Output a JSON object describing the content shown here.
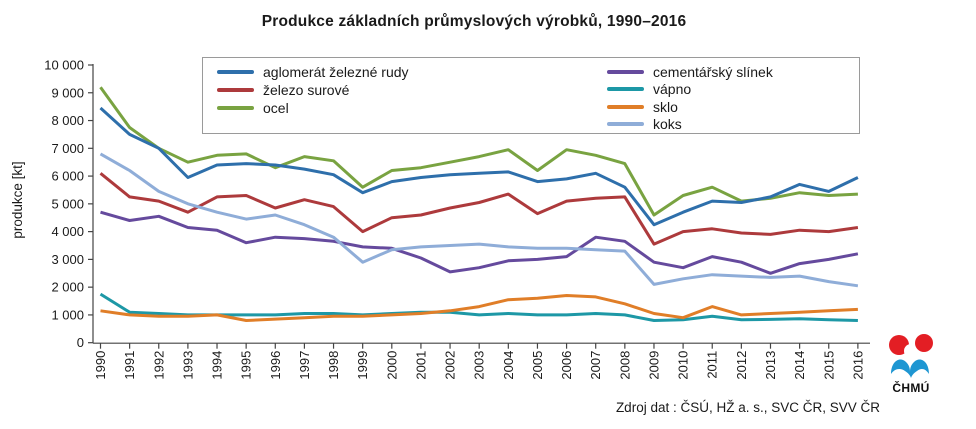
{
  "title": "Produkce základních průmyslových výrobků, 1990–2016",
  "source": "Zdroj dat : ČSÚ, HŽ a. s., SVC ČR, SVV ČR",
  "logo": {
    "caption": "ČHMÚ",
    "red": "#e31e24",
    "blue": "#1e96d2"
  },
  "chart_data": {
    "type": "line",
    "title": "Produkce základních průmyslových výrobků, 1990–2016",
    "xlabel": "",
    "ylabel": "produkce  [kt]",
    "ylim": [
      0,
      10000
    ],
    "ytick_step": 1000,
    "grid": false,
    "legend_position": "top-inside-two-columns",
    "x": [
      1990,
      1991,
      1992,
      1993,
      1994,
      1995,
      1996,
      1997,
      1998,
      1999,
      2000,
      2001,
      2002,
      2003,
      2004,
      2005,
      2006,
      2007,
      2008,
      2009,
      2010,
      2011,
      2012,
      2013,
      2014,
      2015,
      2016
    ],
    "series": [
      {
        "name": "aglomerát železné rudy",
        "slug": "aglomerat-zelezne-rudy",
        "color": "#2e6fab",
        "values": [
          8450,
          7500,
          7000,
          5950,
          6400,
          6450,
          6400,
          6250,
          6050,
          5400,
          5800,
          5950,
          6050,
          6100,
          6150,
          5800,
          5900,
          6100,
          5600,
          4250,
          4700,
          5100,
          5050,
          5250,
          5700,
          5450,
          5950
        ]
      },
      {
        "name": "železo surové",
        "slug": "zelezo-surove",
        "color": "#ad3a3c",
        "values": [
          6100,
          5250,
          5100,
          4700,
          5250,
          5300,
          4850,
          5150,
          4900,
          4000,
          4500,
          4600,
          4850,
          5050,
          5350,
          4650,
          5100,
          5200,
          5250,
          3550,
          4000,
          4100,
          3950,
          3900,
          4050,
          4000,
          4150
        ]
      },
      {
        "name": "ocel",
        "slug": "ocel",
        "color": "#79a341",
        "values": [
          9200,
          7750,
          7000,
          6500,
          6750,
          6800,
          6300,
          6700,
          6550,
          5600,
          6200,
          6300,
          6500,
          6700,
          6950,
          6200,
          6950,
          6750,
          6450,
          4600,
          5300,
          5600,
          5100,
          5200,
          5400,
          5300,
          5350
        ]
      },
      {
        "name": "cementářský slínek",
        "slug": "cementarsky-slinek",
        "color": "#654a9d",
        "values": [
          4700,
          4400,
          4550,
          4150,
          4050,
          3600,
          3800,
          3750,
          3650,
          3450,
          3400,
          3050,
          2550,
          2700,
          2950,
          3000,
          3100,
          3800,
          3650,
          2900,
          2700,
          3100,
          2900,
          2500,
          2850,
          3000,
          3200
        ]
      },
      {
        "name": "vápno",
        "slug": "vapno",
        "color": "#1d98a6",
        "values": [
          1750,
          1100,
          1050,
          1000,
          1000,
          1000,
          1000,
          1050,
          1050,
          1000,
          1050,
          1100,
          1100,
          1000,
          1050,
          1000,
          1000,
          1050,
          1000,
          800,
          830,
          950,
          830,
          840,
          860,
          830,
          800
        ]
      },
      {
        "name": "sklo",
        "slug": "sklo",
        "color": "#e07e28",
        "values": [
          1150,
          1000,
          950,
          950,
          1000,
          800,
          850,
          900,
          950,
          950,
          1000,
          1050,
          1150,
          1300,
          1550,
          1600,
          1700,
          1650,
          1400,
          1050,
          900,
          1300,
          1000,
          1050,
          1100,
          1150,
          1200
        ]
      },
      {
        "name": "koks",
        "slug": "koks",
        "color": "#8fadd8",
        "values": [
          6800,
          6200,
          5450,
          5000,
          4700,
          4450,
          4600,
          4250,
          3800,
          2900,
          3350,
          3450,
          3500,
          3550,
          3450,
          3400,
          3400,
          3350,
          3300,
          2100,
          2300,
          2450,
          2400,
          2350,
          2400,
          2200,
          2050
        ]
      }
    ]
  }
}
